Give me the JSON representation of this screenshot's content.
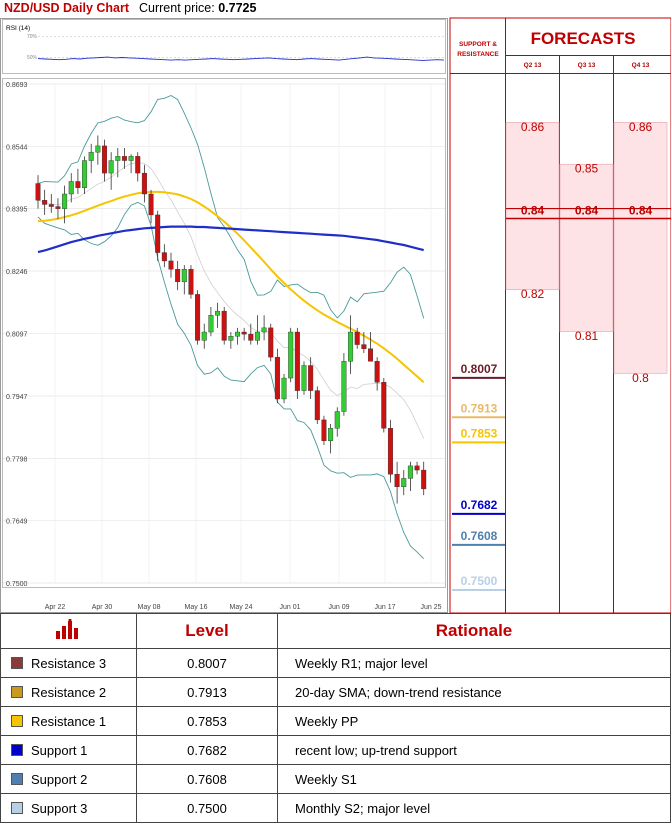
{
  "header": {
    "title": "NZD/USD Daily Chart",
    "price_label": "Current price:",
    "price_value": "0.7725"
  },
  "chart_data": {
    "type": "candlestick",
    "pair": "NZD/USD",
    "ylim": [
      0.75,
      0.8693
    ],
    "y_ticks": [
      "0.8693",
      "0.8544",
      "0.8395",
      "0.8246",
      "0.8097",
      "0.7947",
      "0.7798",
      "0.7649",
      "0.7500"
    ],
    "x_ticks": [
      "Apr 22",
      "Apr 30",
      "May 08",
      "May 16",
      "May 24",
      "Jun 01",
      "Jun 09",
      "Jun 17",
      "Jun 25"
    ],
    "rsi": {
      "label": "RSI (14)",
      "levels": [
        "70%",
        "50%"
      ]
    },
    "candles": [
      [
        0.8455,
        0.8475,
        0.8395,
        0.8415
      ],
      [
        0.8415,
        0.844,
        0.838,
        0.8405
      ],
      [
        0.8405,
        0.843,
        0.8385,
        0.84
      ],
      [
        0.84,
        0.842,
        0.837,
        0.8395
      ],
      [
        0.8395,
        0.845,
        0.836,
        0.843
      ],
      [
        0.843,
        0.848,
        0.841,
        0.846
      ],
      [
        0.846,
        0.849,
        0.843,
        0.8445
      ],
      [
        0.8445,
        0.852,
        0.843,
        0.851
      ],
      [
        0.851,
        0.855,
        0.848,
        0.853
      ],
      [
        0.853,
        0.857,
        0.85,
        0.8545
      ],
      [
        0.8545,
        0.856,
        0.846,
        0.848
      ],
      [
        0.848,
        0.853,
        0.844,
        0.851
      ],
      [
        0.851,
        0.854,
        0.847,
        0.852
      ],
      [
        0.852,
        0.854,
        0.849,
        0.851
      ],
      [
        0.851,
        0.8525,
        0.848,
        0.852
      ],
      [
        0.852,
        0.853,
        0.846,
        0.848
      ],
      [
        0.848,
        0.85,
        0.841,
        0.843
      ],
      [
        0.843,
        0.844,
        0.836,
        0.838
      ],
      [
        0.838,
        0.839,
        0.827,
        0.829
      ],
      [
        0.829,
        0.831,
        0.8255,
        0.827
      ],
      [
        0.827,
        0.829,
        0.823,
        0.825
      ],
      [
        0.825,
        0.827,
        0.82,
        0.822
      ],
      [
        0.822,
        0.826,
        0.819,
        0.825
      ],
      [
        0.825,
        0.826,
        0.818,
        0.819
      ],
      [
        0.819,
        0.82,
        0.807,
        0.808
      ],
      [
        0.808,
        0.812,
        0.806,
        0.81
      ],
      [
        0.81,
        0.816,
        0.809,
        0.814
      ],
      [
        0.814,
        0.817,
        0.811,
        0.815
      ],
      [
        0.815,
        0.816,
        0.807,
        0.808
      ],
      [
        0.808,
        0.81,
        0.806,
        0.809
      ],
      [
        0.809,
        0.811,
        0.807,
        0.81
      ],
      [
        0.81,
        0.811,
        0.808,
        0.8095
      ],
      [
        0.8095,
        0.812,
        0.807,
        0.808
      ],
      [
        0.808,
        0.814,
        0.807,
        0.81
      ],
      [
        0.81,
        0.814,
        0.808,
        0.811
      ],
      [
        0.811,
        0.812,
        0.803,
        0.804
      ],
      [
        0.804,
        0.806,
        0.793,
        0.794
      ],
      [
        0.794,
        0.8,
        0.793,
        0.799
      ],
      [
        0.799,
        0.811,
        0.798,
        0.81
      ],
      [
        0.81,
        0.811,
        0.794,
        0.796
      ],
      [
        0.796,
        0.803,
        0.795,
        0.802
      ],
      [
        0.802,
        0.804,
        0.794,
        0.796
      ],
      [
        0.796,
        0.797,
        0.788,
        0.789
      ],
      [
        0.789,
        0.79,
        0.783,
        0.784
      ],
      [
        0.784,
        0.788,
        0.781,
        0.787
      ],
      [
        0.787,
        0.792,
        0.785,
        0.791
      ],
      [
        0.791,
        0.805,
        0.79,
        0.803
      ],
      [
        0.803,
        0.814,
        0.8,
        0.81
      ],
      [
        0.81,
        0.811,
        0.806,
        0.807
      ],
      [
        0.807,
        0.81,
        0.805,
        0.806
      ],
      [
        0.806,
        0.81,
        0.804,
        0.803
      ],
      [
        0.803,
        0.804,
        0.796,
        0.798
      ],
      [
        0.798,
        0.799,
        0.786,
        0.787
      ],
      [
        0.787,
        0.789,
        0.774,
        0.776
      ],
      [
        0.776,
        0.779,
        0.769,
        0.773
      ],
      [
        0.773,
        0.777,
        0.771,
        0.775
      ],
      [
        0.775,
        0.779,
        0.772,
        0.778
      ],
      [
        0.778,
        0.779,
        0.776,
        0.777
      ],
      [
        0.777,
        0.779,
        0.771,
        0.7725
      ]
    ],
    "sma_long": [
      0.8291,
      0.8295,
      0.83,
      0.8305,
      0.831,
      0.8315,
      0.8319,
      0.8323,
      0.8326,
      0.833,
      0.8333,
      0.8336,
      0.8339,
      0.8342,
      0.8344,
      0.8346,
      0.8348,
      0.8349,
      0.835,
      0.8351,
      0.8352,
      0.8352,
      0.8352,
      0.8352,
      0.8351,
      0.8351,
      0.835,
      0.8349,
      0.8348,
      0.8347,
      0.8346,
      0.8345,
      0.8344,
      0.8343,
      0.8342,
      0.8341,
      0.834,
      0.8339,
      0.8338,
      0.8337,
      0.8336,
      0.8335,
      0.8334,
      0.8333,
      0.8332,
      0.8331,
      0.833,
      0.8328,
      0.8326,
      0.8324,
      0.8322,
      0.832,
      0.8317,
      0.8314,
      0.8311,
      0.8308,
      0.8304,
      0.83,
      0.8296
    ],
    "sma_mid": [
      0.8365,
      0.8366,
      0.8368,
      0.8371,
      0.8375,
      0.8379,
      0.8384,
      0.839,
      0.8396,
      0.8402,
      0.8408,
      0.8413,
      0.8419,
      0.8424,
      0.8428,
      0.8432,
      0.8434,
      0.8435,
      0.8435,
      0.8434,
      0.8432,
      0.8429,
      0.8424,
      0.8418,
      0.841,
      0.84,
      0.8389,
      0.8377,
      0.8364,
      0.835,
      0.8335,
      0.8319,
      0.8302,
      0.8285,
      0.8268,
      0.825,
      0.8233,
      0.8217,
      0.8202,
      0.8188,
      0.8175,
      0.8163,
      0.8152,
      0.8142,
      0.8133,
      0.8124,
      0.8116,
      0.8108,
      0.81,
      0.8091,
      0.8082,
      0.8072,
      0.8061,
      0.8049,
      0.8036,
      0.8022,
      0.8008,
      0.7994,
      0.798
    ],
    "support_resistance": [
      {
        "label": "Resistance 3",
        "value": "0.8007",
        "color": "#6b1c28"
      },
      {
        "label": "Resistance 2",
        "value": "0.7913",
        "color": "#e8b96a"
      },
      {
        "label": "Resistance 1",
        "value": "0.7853",
        "color": "#f6c400"
      },
      {
        "label": "Support 1",
        "value": "0.7682",
        "color": "#0000cc"
      },
      {
        "label": "Support 2",
        "value": "0.7608",
        "color": "#4f7fae"
      },
      {
        "label": "Support 3",
        "value": "0.7500",
        "color": "#b8d0e6"
      }
    ]
  },
  "forecast_panel": {
    "sr_title": "SUPPORT & RESISTANCE",
    "title": "FORECASTS",
    "columns": [
      {
        "label": "Q2 13",
        "values": [
          {
            "value": "0.86",
            "price": 0.86
          },
          {
            "value": "0.84",
            "price": 0.84,
            "bold": true
          },
          {
            "value": "0.82",
            "price": 0.82
          }
        ]
      },
      {
        "label": "Q3 13",
        "values": [
          {
            "value": "0.85",
            "price": 0.85
          },
          {
            "value": "0.84",
            "price": 0.84,
            "bold": true
          },
          {
            "value": "0.81",
            "price": 0.81
          }
        ]
      },
      {
        "label": "Q4 13",
        "values": [
          {
            "value": "0.86",
            "price": 0.86
          },
          {
            "value": "0.84",
            "price": 0.84,
            "bold": true
          },
          {
            "value": "0.8",
            "price": 0.8
          }
        ]
      }
    ]
  },
  "table": {
    "headers": [
      "Level",
      "Rationale"
    ],
    "rows": [
      {
        "name": "Resistance 3",
        "color": "#8b3a3a",
        "level": "0.8007",
        "rationale": "Weekly R1; major level"
      },
      {
        "name": "Resistance 2",
        "color": "#c99a1e",
        "level": "0.7913",
        "rationale": "20-day SMA; down-trend resistance"
      },
      {
        "name": "Resistance 1",
        "color": "#f6c400",
        "level": "0.7853",
        "rationale": "Weekly PP"
      },
      {
        "name": "Support 1",
        "color": "#0000cc",
        "level": "0.7682",
        "rationale": "recent low; up-trend support"
      },
      {
        "name": "Support 2",
        "color": "#4f7fae",
        "level": "0.7608",
        "rationale": "Weekly S1"
      },
      {
        "name": "Support 3",
        "color": "#b8d0e6",
        "level": "0.7500",
        "rationale": "Monthly S2; major level"
      }
    ]
  }
}
